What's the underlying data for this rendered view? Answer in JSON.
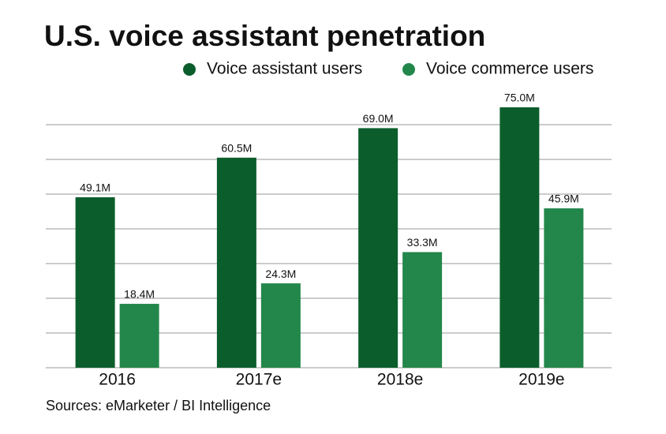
{
  "chart_data": {
    "type": "bar",
    "title": "U.S. voice assistant penetration",
    "source": "Sources: eMarketer / BI Intelligence",
    "categories": [
      "2016",
      "2017e",
      "2018e",
      "2019e"
    ],
    "series": [
      {
        "name": "Voice assistant users",
        "color": "#0b5e2c",
        "values": [
          49.1,
          60.5,
          69.0,
          75.0
        ],
        "value_labels": [
          "49.1M",
          "60.5M",
          "69.0M",
          "75.0M"
        ]
      },
      {
        "name": "Voice commerce users",
        "color": "#23874b",
        "values": [
          18.4,
          24.3,
          33.3,
          45.9
        ],
        "value_labels": [
          "18.4M",
          "24.3M",
          "33.3M",
          "45.9M"
        ]
      }
    ],
    "ylim": [
      0,
      80
    ],
    "yticks": [
      0,
      10,
      20,
      30,
      40,
      50,
      60,
      70
    ],
    "grid": true,
    "legend": "top-right"
  }
}
